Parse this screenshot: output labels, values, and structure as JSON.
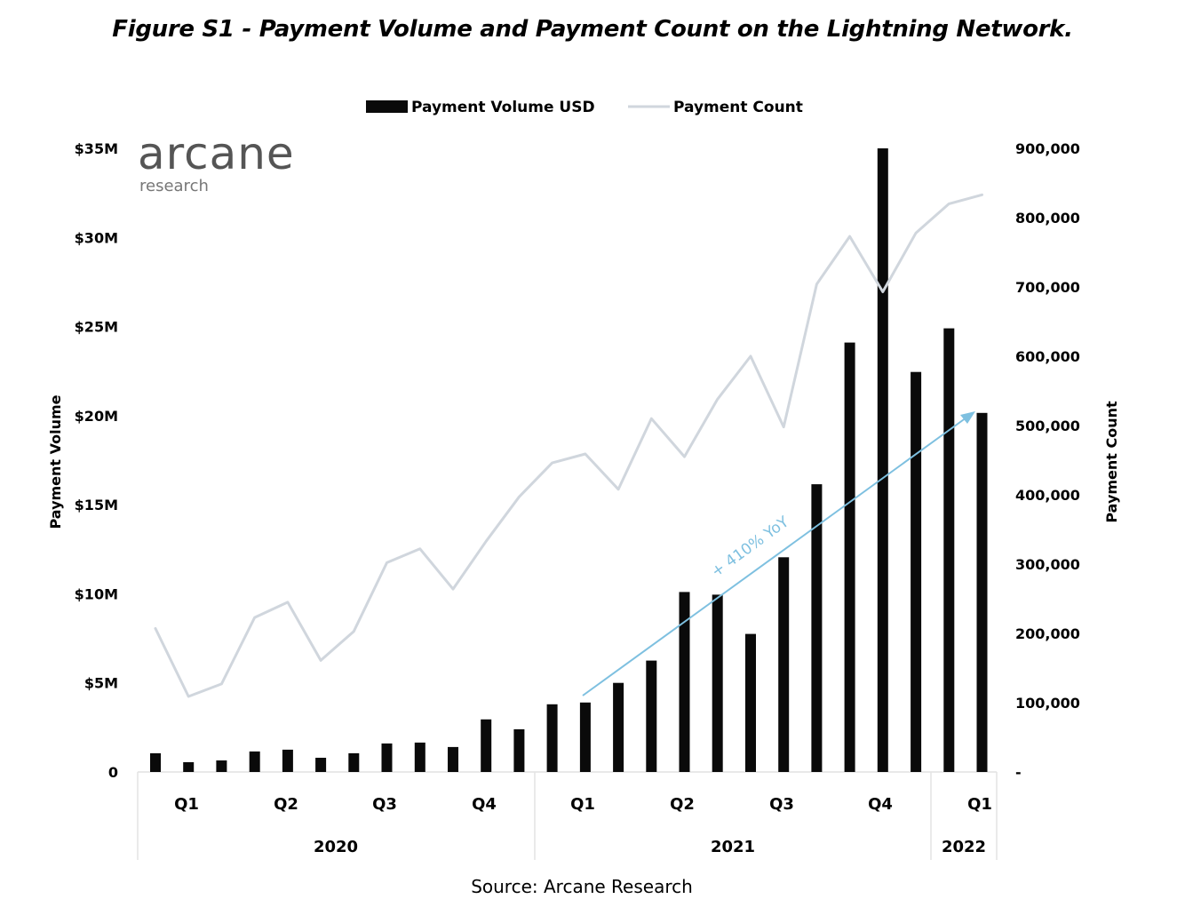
{
  "figure_title": "Figure S1 - Payment Volume and Payment Count on the Lightning Network.",
  "logo": {
    "name": "arcane",
    "sub": "research"
  },
  "source": "Source: Arcane Research",
  "annotation": "+ 410% YoY",
  "colors": {
    "bars": "#0a0a0a",
    "line": "#d0d6dd",
    "annotation": "#7ec0e0"
  },
  "chart_data": {
    "type": "bar",
    "legend": {
      "position": "top-center",
      "items": [
        "Payment Volume USD",
        "Payment Count"
      ]
    },
    "ylabel": "Payment Volume",
    "y2label": "Payment Count",
    "ylim": [
      0,
      35000000
    ],
    "y2lim": [
      0,
      900000
    ],
    "y_ticks": [
      "0",
      "$5M",
      "$10M",
      "$15M",
      "$20M",
      "$25M",
      "$30M",
      "$35M"
    ],
    "y2_ticks": [
      "-",
      "100,000",
      "200,000",
      "300,000",
      "400,000",
      "500,000",
      "600,000",
      "700,000",
      "800,000",
      "900,000"
    ],
    "quarter_labels": [
      "Q1",
      "Q2",
      "Q3",
      "Q4",
      "Q1",
      "Q2",
      "Q3",
      "Q4",
      "Q1"
    ],
    "year_labels": [
      "2020",
      "2021",
      "2022"
    ],
    "grid": false,
    "series": [
      {
        "name": "Payment Volume USD",
        "type": "bar",
        "axis": "left",
        "values": [
          1050000,
          550000,
          650000,
          1150000,
          1250000,
          800000,
          1050000,
          1600000,
          1650000,
          1400000,
          2950000,
          2400000,
          3800000,
          3900000,
          5000000,
          6250000,
          10100000,
          9950000,
          7750000,
          12050000,
          16150000,
          24100000,
          35000000,
          22450000,
          24900000,
          20150000
        ]
      },
      {
        "name": "Payment Count",
        "type": "line",
        "axis": "right",
        "values": [
          207000,
          109000,
          127000,
          223000,
          245000,
          161000,
          203000,
          302000,
          322000,
          264000,
          333000,
          397000,
          446000,
          459000,
          408000,
          510000,
          455000,
          538000,
          600000,
          498000,
          704000,
          773000,
          693000,
          778000,
          820000,
          833000
        ]
      }
    ]
  }
}
